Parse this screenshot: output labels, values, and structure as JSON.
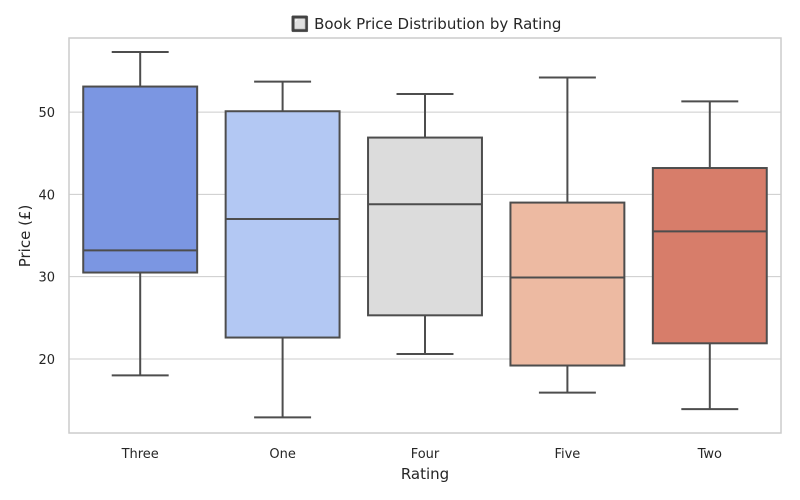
{
  "chart_data": {
    "type": "box",
    "title": "🔲 Book Price Distribution by Rating",
    "xlabel": "Rating",
    "ylabel": "Price (£)",
    "ylim": [
      11,
      59
    ],
    "yticks": [
      20,
      30,
      40,
      50
    ],
    "grid": true,
    "categories": [
      "Three",
      "One",
      "Four",
      "Five",
      "Two"
    ],
    "colors": [
      "#7b96e2",
      "#b3c8f3",
      "#dcdcdc",
      "#edbaa2",
      "#d77d6a"
    ],
    "boxes": [
      {
        "category": "Three",
        "min": 18.0,
        "q1": 30.5,
        "median": 33.2,
        "q3": 53.1,
        "max": 57.3
      },
      {
        "category": "One",
        "min": 12.9,
        "q1": 22.6,
        "median": 37.0,
        "q3": 50.1,
        "max": 53.7
      },
      {
        "category": "Four",
        "min": 20.6,
        "q1": 25.3,
        "median": 38.8,
        "q3": 46.9,
        "max": 52.2
      },
      {
        "category": "Five",
        "min": 15.9,
        "q1": 19.2,
        "median": 29.9,
        "q3": 39.0,
        "max": 54.2
      },
      {
        "category": "Two",
        "min": 13.9,
        "q1": 21.9,
        "median": 35.5,
        "q3": 43.2,
        "max": 51.3
      }
    ]
  }
}
